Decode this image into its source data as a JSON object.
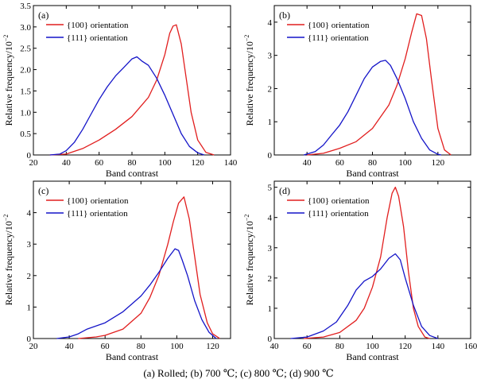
{
  "caption": "(a)  Rolled;  (b) 700  ℃; (c) 800  ℃; (d) 900  ℃",
  "colors": {
    "series_100": "#e11e1e",
    "series_111": "#1414c8"
  },
  "chart_data": [
    {
      "type": "line",
      "panel": "(a)",
      "xlabel": "Band contrast",
      "ylabel": "Relative frequency/10",
      "ylabel_exp": "−2",
      "xlim": [
        20,
        140
      ],
      "ylim": [
        0,
        3.5
      ],
      "xticks": [
        20,
        40,
        60,
        80,
        100,
        120,
        140
      ],
      "yticks": [
        0,
        0.5,
        1.0,
        1.5,
        2.0,
        2.5,
        3.0,
        3.5
      ],
      "ytick_labels": [
        "0",
        "0.5",
        "1.0",
        "1.5",
        "2.0",
        "2.5",
        "3.0",
        "3.5"
      ],
      "legend_position": "top-left",
      "series": [
        {
          "name": "{100} orientation",
          "color": "#e11e1e",
          "points": [
            [
              30,
              0
            ],
            [
              40,
              0.02
            ],
            [
              50,
              0.15
            ],
            [
              60,
              0.35
            ],
            [
              70,
              0.6
            ],
            [
              80,
              0.9
            ],
            [
              90,
              1.35
            ],
            [
              95,
              1.75
            ],
            [
              100,
              2.35
            ],
            [
              103,
              2.85
            ],
            [
              105,
              3.02
            ],
            [
              107,
              3.05
            ],
            [
              110,
              2.6
            ],
            [
              113,
              1.8
            ],
            [
              116,
              1.0
            ],
            [
              120,
              0.35
            ],
            [
              125,
              0.06
            ],
            [
              130,
              0
            ]
          ]
        },
        {
          "name": "{111} orientation",
          "color": "#1414c8",
          "points": [
            [
              30,
              0
            ],
            [
              36,
              0.02
            ],
            [
              40,
              0.1
            ],
            [
              45,
              0.3
            ],
            [
              50,
              0.6
            ],
            [
              55,
              0.95
            ],
            [
              60,
              1.3
            ],
            [
              65,
              1.6
            ],
            [
              70,
              1.85
            ],
            [
              75,
              2.05
            ],
            [
              80,
              2.25
            ],
            [
              83,
              2.3
            ],
            [
              86,
              2.2
            ],
            [
              90,
              2.1
            ],
            [
              95,
              1.8
            ],
            [
              100,
              1.4
            ],
            [
              105,
              0.95
            ],
            [
              110,
              0.5
            ],
            [
              115,
              0.2
            ],
            [
              120,
              0.05
            ],
            [
              124,
              0
            ]
          ]
        }
      ]
    },
    {
      "type": "line",
      "panel": "(b)",
      "xlabel": "Band contrast",
      "ylabel": "Relative frequency/10",
      "ylabel_exp": "−2",
      "xlim": [
        20,
        140
      ],
      "ylim": [
        0,
        4.5
      ],
      "xticks": [
        40,
        60,
        80,
        100,
        120
      ],
      "yticks": [
        0,
        1,
        2,
        3,
        4
      ],
      "ytick_labels": [
        "0",
        "1",
        "2",
        "3",
        "4"
      ],
      "legend_position": "top-left",
      "series": [
        {
          "name": "{100} orientation",
          "color": "#e11e1e",
          "points": [
            [
              40,
              0
            ],
            [
              50,
              0.05
            ],
            [
              60,
              0.2
            ],
            [
              70,
              0.4
            ],
            [
              80,
              0.8
            ],
            [
              90,
              1.5
            ],
            [
              95,
              2.1
            ],
            [
              100,
              2.9
            ],
            [
              104,
              3.7
            ],
            [
              107,
              4.25
            ],
            [
              110,
              4.2
            ],
            [
              113,
              3.5
            ],
            [
              116,
              2.3
            ],
            [
              120,
              0.8
            ],
            [
              124,
              0.15
            ],
            [
              128,
              0
            ]
          ]
        },
        {
          "name": "{111} orientation",
          "color": "#1414c8",
          "points": [
            [
              38,
              0
            ],
            [
              45,
              0.1
            ],
            [
              50,
              0.3
            ],
            [
              55,
              0.6
            ],
            [
              60,
              0.9
            ],
            [
              65,
              1.3
            ],
            [
              70,
              1.8
            ],
            [
              75,
              2.3
            ],
            [
              80,
              2.65
            ],
            [
              85,
              2.82
            ],
            [
              88,
              2.85
            ],
            [
              91,
              2.7
            ],
            [
              95,
              2.3
            ],
            [
              100,
              1.7
            ],
            [
              105,
              1.0
            ],
            [
              110,
              0.5
            ],
            [
              115,
              0.15
            ],
            [
              120,
              0.02
            ],
            [
              122,
              0
            ]
          ]
        }
      ]
    },
    {
      "type": "line",
      "panel": "(c)",
      "xlabel": "Band contrast",
      "ylabel": "Relative frequency/10",
      "ylabel_exp": "−2",
      "xlim": [
        20,
        130
      ],
      "ylim": [
        0,
        5
      ],
      "xticks": [
        20,
        40,
        60,
        80,
        100,
        120
      ],
      "yticks": [
        0,
        1,
        2,
        3,
        4
      ],
      "ytick_labels": [
        "0",
        "1",
        "2",
        "3",
        "4"
      ],
      "legend_position": "top-left",
      "series": [
        {
          "name": "{100} orientation",
          "color": "#e11e1e",
          "points": [
            [
              45,
              0
            ],
            [
              55,
              0.05
            ],
            [
              60,
              0.1
            ],
            [
              70,
              0.3
            ],
            [
              80,
              0.8
            ],
            [
              85,
              1.3
            ],
            [
              90,
              2.0
            ],
            [
              95,
              3.0
            ],
            [
              98,
              3.7
            ],
            [
              101,
              4.3
            ],
            [
              104,
              4.5
            ],
            [
              107,
              3.8
            ],
            [
              110,
              2.6
            ],
            [
              113,
              1.4
            ],
            [
              117,
              0.5
            ],
            [
              120,
              0.15
            ],
            [
              124,
              0
            ]
          ]
        },
        {
          "name": "{111} orientation",
          "color": "#1414c8",
          "points": [
            [
              33,
              0
            ],
            [
              40,
              0.05
            ],
            [
              45,
              0.15
            ],
            [
              50,
              0.3
            ],
            [
              60,
              0.5
            ],
            [
              70,
              0.85
            ],
            [
              80,
              1.35
            ],
            [
              85,
              1.7
            ],
            [
              90,
              2.1
            ],
            [
              95,
              2.55
            ],
            [
              99,
              2.85
            ],
            [
              101,
              2.8
            ],
            [
              103,
              2.5
            ],
            [
              106,
              2.0
            ],
            [
              110,
              1.2
            ],
            [
              114,
              0.6
            ],
            [
              118,
              0.2
            ],
            [
              122,
              0
            ]
          ]
        }
      ]
    },
    {
      "type": "line",
      "panel": "(d)",
      "xlabel": "Band contrast",
      "ylabel": "Relative frequency/10",
      "ylabel_exp": "−2",
      "xlim": [
        40,
        160
      ],
      "ylim": [
        0,
        5.2
      ],
      "xticks": [
        40,
        60,
        80,
        100,
        120,
        140,
        160
      ],
      "yticks": [
        0,
        1,
        2,
        3,
        4,
        5
      ],
      "ytick_labels": [
        "0",
        "1",
        "2",
        "3",
        "4",
        "5"
      ],
      "legend_position": "top-left",
      "series": [
        {
          "name": "{100} orientation",
          "color": "#e11e1e",
          "points": [
            [
              58,
              0
            ],
            [
              70,
              0.05
            ],
            [
              80,
              0.2
            ],
            [
              90,
              0.6
            ],
            [
              95,
              1.0
            ],
            [
              100,
              1.7
            ],
            [
              105,
              2.7
            ],
            [
              109,
              4.0
            ],
            [
              112,
              4.8
            ],
            [
              114,
              5.0
            ],
            [
              116,
              4.7
            ],
            [
              119,
              3.7
            ],
            [
              122,
              2.2
            ],
            [
              125,
              1.0
            ],
            [
              128,
              0.4
            ],
            [
              132,
              0.05
            ],
            [
              135,
              0
            ]
          ]
        },
        {
          "name": "{111} orientation",
          "color": "#1414c8",
          "points": [
            [
              50,
              0
            ],
            [
              60,
              0.05
            ],
            [
              70,
              0.25
            ],
            [
              78,
              0.55
            ],
            [
              85,
              1.1
            ],
            [
              90,
              1.6
            ],
            [
              95,
              1.9
            ],
            [
              100,
              2.05
            ],
            [
              105,
              2.3
            ],
            [
              110,
              2.65
            ],
            [
              114,
              2.8
            ],
            [
              117,
              2.6
            ],
            [
              120,
              2.0
            ],
            [
              125,
              1.1
            ],
            [
              130,
              0.4
            ],
            [
              135,
              0.1
            ],
            [
              140,
              0
            ]
          ]
        }
      ]
    }
  ]
}
